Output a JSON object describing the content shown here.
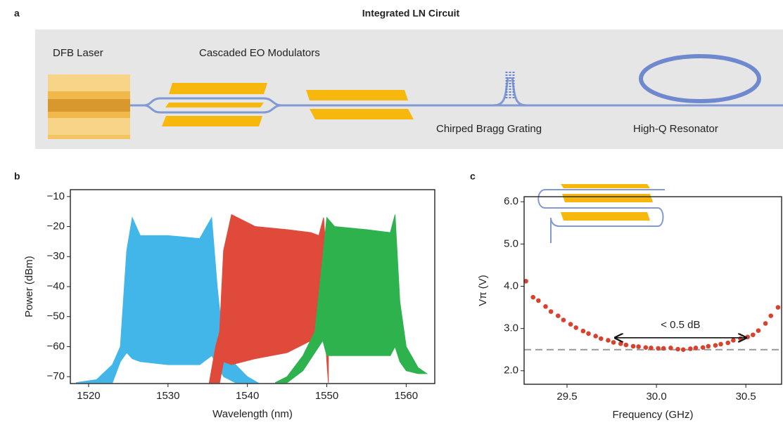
{
  "panel_a": {
    "panel": "a",
    "title": "Integrated LN Circuit",
    "labels": [
      "DFB Laser",
      "Cascaded EO Modulators",
      "Chirped Bragg Grating",
      "High-Q Resonator"
    ]
  },
  "chart_data": [
    {
      "type": "area",
      "panel": "b",
      "xlabel": "Wavelength (nm)",
      "ylabel": "Power (dBm)",
      "xlim": [
        1517.7,
        1563.6
      ],
      "ylim": [
        -72.3,
        -7.7
      ],
      "xticks": [
        1520,
        1530,
        1540,
        1550,
        1560
      ],
      "yticks": [
        {
          "value": -10,
          "label": "−10"
        },
        {
          "value": -20,
          "label": "−20"
        },
        {
          "value": -30,
          "label": "−30"
        },
        {
          "value": -40,
          "label": "−40"
        },
        {
          "value": -50,
          "label": "−50"
        },
        {
          "value": -60,
          "label": "−60"
        },
        {
          "value": -70,
          "label": "−70"
        }
      ],
      "series": [
        {
          "color": "#43b6e9",
          "x": [
            1518.4,
            1521,
            1523,
            1524,
            1524.8,
            1525.5,
            1526.5,
            1530,
            1534,
            1535.5,
            1536.2,
            1537,
            1538.5,
            1540,
            1541.3
          ],
          "values": [
            -72,
            -71,
            -66,
            -60,
            -28,
            -17,
            -23,
            -23,
            -24,
            -17,
            -40,
            -60,
            -66,
            -70,
            -72
          ],
          "floor": [
            -72,
            -72,
            -72,
            -65,
            -62,
            -64,
            -65,
            -66,
            -66,
            -63,
            -66,
            -70,
            -72,
            -72,
            -72
          ]
        },
        {
          "color": "#e04a3b",
          "x": [
            1535.2,
            1536,
            1536.5,
            1537,
            1538,
            1541,
            1545,
            1548,
            1549,
            1549.6,
            1550.2
          ],
          "values": [
            -72,
            -60,
            -55,
            -28,
            -16,
            -20,
            -21,
            -22,
            -23,
            -17,
            -40
          ],
          "floor": [
            -72,
            -72,
            -72,
            -65,
            -66,
            -64,
            -62,
            -58,
            -55,
            -50,
            -72
          ]
        },
        {
          "color": "#2eb24e",
          "x": [
            1543.5,
            1545,
            1547,
            1548.5,
            1549.5,
            1550,
            1551,
            1555,
            1558,
            1558.6,
            1559.2,
            1560,
            1561.5,
            1562.6
          ],
          "values": [
            -72,
            -70,
            -63,
            -55,
            -30,
            -17,
            -20,
            -21,
            -22,
            -16,
            -45,
            -60,
            -67,
            -69
          ],
          "floor": [
            -72,
            -72,
            -68,
            -62,
            -58,
            -63,
            -63,
            -63,
            -63,
            -60,
            -65,
            -68,
            -69,
            -69
          ]
        }
      ]
    },
    {
      "type": "scatter",
      "panel": "c",
      "xlabel": "Frequency (GHz)",
      "ylabel": "Vπ (V)",
      "xlim": [
        29.26,
        30.7
      ],
      "ylim": [
        1.68,
        6.12
      ],
      "xticks": [
        29.5,
        {
          "value": 30.0,
          "label": "30.0"
        },
        30.5
      ],
      "yticks": [
        {
          "value": 2,
          "label": "2.0"
        },
        {
          "value": 3,
          "label": "3.0"
        },
        {
          "value": 4,
          "label": "4.0"
        },
        {
          "value": 5,
          "label": "5.0"
        },
        {
          "value": 6,
          "label": "6.0"
        }
      ],
      "hline": 2.5,
      "annotation": {
        "text": "< 0.5 dB",
        "x": [
          29.77,
          30.5
        ],
        "y": 2.78
      },
      "color": "#d9412f",
      "x": [
        29.27,
        29.31,
        29.34,
        29.38,
        29.41,
        29.45,
        29.48,
        29.52,
        29.55,
        29.59,
        29.62,
        29.66,
        29.69,
        29.73,
        29.76,
        29.8,
        29.83,
        29.87,
        29.9,
        29.94,
        29.97,
        30.01,
        30.04,
        30.08,
        30.12,
        30.15,
        30.19,
        30.22,
        30.26,
        30.29,
        30.33,
        30.36,
        30.4,
        30.43,
        30.47,
        30.51,
        30.54,
        30.57,
        30.61,
        30.64,
        30.68
      ],
      "values": [
        4.12,
        3.74,
        3.66,
        3.52,
        3.4,
        3.3,
        3.2,
        3.1,
        3.02,
        2.94,
        2.88,
        2.82,
        2.76,
        2.72,
        2.67,
        2.64,
        2.61,
        2.58,
        2.57,
        2.55,
        2.54,
        2.53,
        2.53,
        2.54,
        2.51,
        2.5,
        2.52,
        2.54,
        2.55,
        2.58,
        2.6,
        2.63,
        2.66,
        2.72,
        2.76,
        2.8,
        2.85,
        2.95,
        3.12,
        3.3,
        3.5
      ]
    }
  ]
}
